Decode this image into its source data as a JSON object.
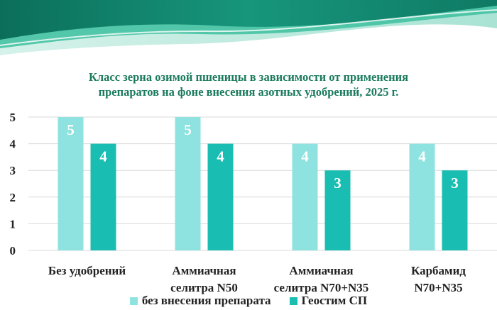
{
  "colors": {
    "banner_dark": "#0f7a64",
    "banner_mid": "#2fb59a",
    "banner_light": "#bfe9dd",
    "title": "#1a7a5c",
    "series_1": "#8ee3e0",
    "series_2": "#19bdb1",
    "grid": "#d9d9d9"
  },
  "chart_data": {
    "type": "bar",
    "title_lines": [
      "Класс зерна озимой пшеницы в зависимости от применения",
      "препаратов на фоне внесения азотных удобрений, 2025 г."
    ],
    "categories": [
      [
        "Без удобрений"
      ],
      [
        "Аммиачная",
        "селитра N50"
      ],
      [
        "Аммиачная",
        "селитра N70+N35"
      ],
      [
        "Карбамид",
        "N70+N35"
      ]
    ],
    "series": [
      {
        "name": "без внесения препарата",
        "values": [
          5,
          5,
          4,
          4
        ]
      },
      {
        "name": "Геостим СП",
        "values": [
          4,
          4,
          3,
          3
        ]
      }
    ],
    "yticks": [
      0,
      1,
      2,
      3,
      4,
      5
    ],
    "ylim": [
      0,
      5
    ],
    "grid": true,
    "legend_position": "bottom"
  }
}
